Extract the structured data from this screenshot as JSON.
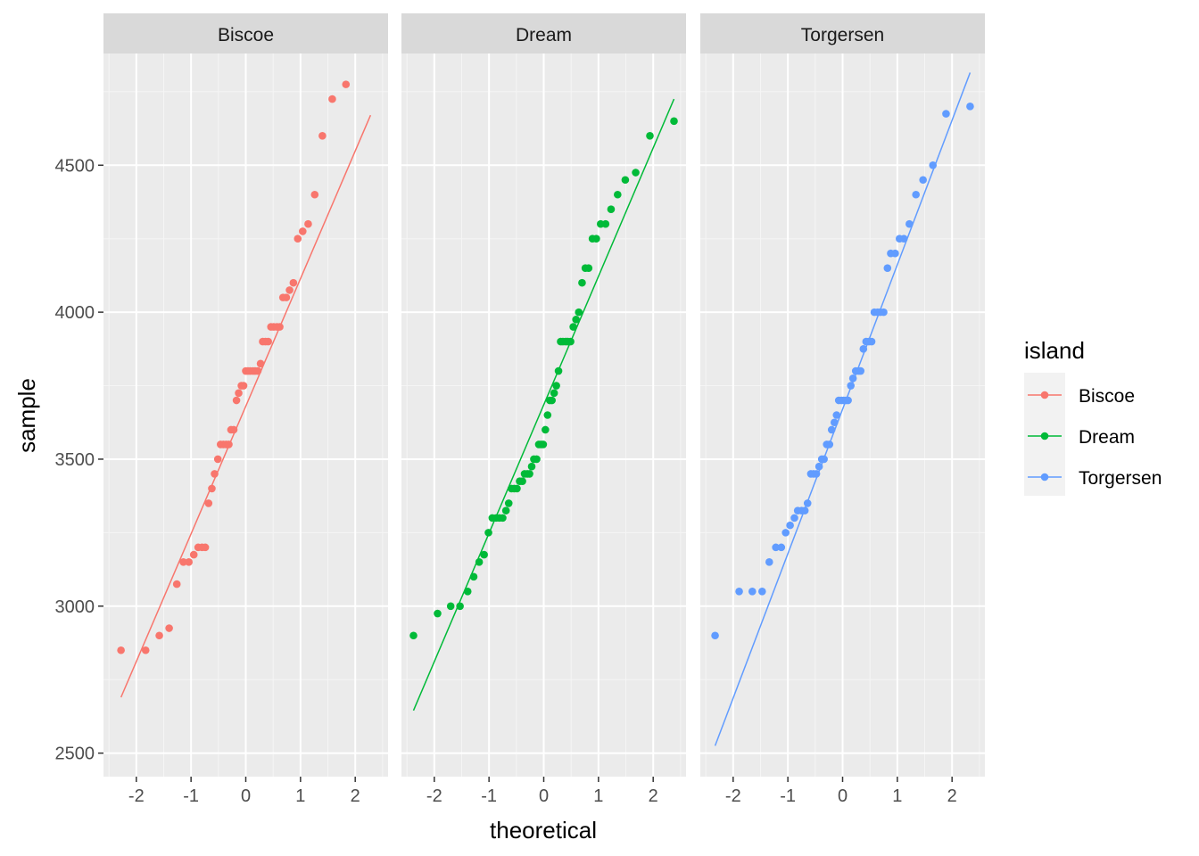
{
  "chart_data": {
    "type": "scatter",
    "subtype": "qq-plot-faceted",
    "facet_by": "island",
    "xlabel": "theoretical",
    "ylabel": "sample",
    "xlim": [
      -2.6,
      2.6
    ],
    "ylim": [
      2420,
      4880
    ],
    "x_ticks": [
      -2,
      -1,
      0,
      1,
      2
    ],
    "y_ticks": [
      2500,
      3000,
      3500,
      4000,
      4500
    ],
    "grid": true,
    "legend": {
      "title": "island",
      "position": "right",
      "entries": [
        "Biscoe",
        "Dream",
        "Torgersen"
      ]
    },
    "panels": [
      {
        "name": "Biscoe",
        "color": "#F8766D",
        "line": {
          "x": [
            -2.28,
            2.28
          ],
          "y": [
            2690,
            4670
          ]
        },
        "points": [
          [
            -2.28,
            2850
          ],
          [
            -1.83,
            2850
          ],
          [
            -1.58,
            2900
          ],
          [
            -1.4,
            2925
          ],
          [
            -1.26,
            3075
          ],
          [
            -1.14,
            3150
          ],
          [
            -1.04,
            3150
          ],
          [
            -0.95,
            3175
          ],
          [
            -0.87,
            3200
          ],
          [
            -0.8,
            3200
          ],
          [
            -0.74,
            3200
          ],
          [
            -0.68,
            3350
          ],
          [
            -0.62,
            3400
          ],
          [
            -0.57,
            3450
          ],
          [
            -0.51,
            3500
          ],
          [
            -0.46,
            3550
          ],
          [
            -0.41,
            3550
          ],
          [
            -0.36,
            3550
          ],
          [
            -0.31,
            3550
          ],
          [
            -0.27,
            3600
          ],
          [
            -0.22,
            3600
          ],
          [
            -0.17,
            3700
          ],
          [
            -0.13,
            3725
          ],
          [
            -0.08,
            3750
          ],
          [
            -0.04,
            3750
          ],
          [
            0.0,
            3800
          ],
          [
            0.04,
            3800
          ],
          [
            0.08,
            3800
          ],
          [
            0.13,
            3800
          ],
          [
            0.17,
            3800
          ],
          [
            0.22,
            3800
          ],
          [
            0.27,
            3825
          ],
          [
            0.31,
            3900
          ],
          [
            0.36,
            3900
          ],
          [
            0.41,
            3900
          ],
          [
            0.46,
            3950
          ],
          [
            0.51,
            3950
          ],
          [
            0.57,
            3950
          ],
          [
            0.62,
            3950
          ],
          [
            0.68,
            4050
          ],
          [
            0.74,
            4050
          ],
          [
            0.8,
            4075
          ],
          [
            0.87,
            4100
          ],
          [
            0.95,
            4250
          ],
          [
            1.04,
            4275
          ],
          [
            1.14,
            4300
          ],
          [
            1.26,
            4400
          ],
          [
            1.4,
            4600
          ],
          [
            1.58,
            4725
          ],
          [
            1.83,
            4775
          ]
        ]
      },
      {
        "name": "Dream",
        "color": "#00BA38",
        "line": {
          "x": [
            -2.38,
            2.38
          ],
          "y": [
            2645,
            4725
          ]
        },
        "points": [
          [
            -2.38,
            2900
          ],
          [
            -1.94,
            2975
          ],
          [
            -1.7,
            3000
          ],
          [
            -1.53,
            3000
          ],
          [
            -1.39,
            3050
          ],
          [
            -1.28,
            3100
          ],
          [
            -1.18,
            3150
          ],
          [
            -1.09,
            3175
          ],
          [
            -1.01,
            3250
          ],
          [
            -0.94,
            3300
          ],
          [
            -0.87,
            3300
          ],
          [
            -0.81,
            3300
          ],
          [
            -0.75,
            3300
          ],
          [
            -0.69,
            3325
          ],
          [
            -0.64,
            3350
          ],
          [
            -0.59,
            3400
          ],
          [
            -0.54,
            3400
          ],
          [
            -0.49,
            3400
          ],
          [
            -0.44,
            3425
          ],
          [
            -0.39,
            3425
          ],
          [
            -0.35,
            3450
          ],
          [
            -0.3,
            3450
          ],
          [
            -0.26,
            3450
          ],
          [
            -0.22,
            3475
          ],
          [
            -0.18,
            3500
          ],
          [
            -0.13,
            3500
          ],
          [
            -0.09,
            3550
          ],
          [
            -0.05,
            3550
          ],
          [
            -0.01,
            3550
          ],
          [
            0.03,
            3600
          ],
          [
            0.07,
            3650
          ],
          [
            0.11,
            3700
          ],
          [
            0.15,
            3700
          ],
          [
            0.19,
            3725
          ],
          [
            0.23,
            3750
          ],
          [
            0.27,
            3800
          ],
          [
            0.31,
            3900
          ],
          [
            0.35,
            3900
          ],
          [
            0.4,
            3900
          ],
          [
            0.44,
            3900
          ],
          [
            0.49,
            3900
          ],
          [
            0.54,
            3950
          ],
          [
            0.59,
            3975
          ],
          [
            0.64,
            4000
          ],
          [
            0.7,
            4100
          ],
          [
            0.76,
            4150
          ],
          [
            0.82,
            4150
          ],
          [
            0.89,
            4250
          ],
          [
            0.96,
            4250
          ],
          [
            1.04,
            4300
          ],
          [
            1.13,
            4300
          ],
          [
            1.23,
            4350
          ],
          [
            1.35,
            4400
          ],
          [
            1.49,
            4450
          ],
          [
            1.68,
            4475
          ],
          [
            1.94,
            4600
          ],
          [
            2.38,
            4650
          ]
        ]
      },
      {
        "name": "Torgersen",
        "color": "#619CFF",
        "line": {
          "x": [
            -2.33,
            2.33
          ],
          "y": [
            2525,
            4815
          ]
        },
        "points": [
          [
            -2.33,
            2900
          ],
          [
            -1.89,
            3050
          ],
          [
            -1.65,
            3050
          ],
          [
            -1.47,
            3050
          ],
          [
            -1.34,
            3150
          ],
          [
            -1.22,
            3200
          ],
          [
            -1.12,
            3200
          ],
          [
            -1.04,
            3250
          ],
          [
            -0.96,
            3275
          ],
          [
            -0.88,
            3300
          ],
          [
            -0.82,
            3325
          ],
          [
            -0.75,
            3325
          ],
          [
            -0.69,
            3325
          ],
          [
            -0.64,
            3350
          ],
          [
            -0.58,
            3450
          ],
          [
            -0.53,
            3450
          ],
          [
            -0.48,
            3450
          ],
          [
            -0.43,
            3475
          ],
          [
            -0.38,
            3500
          ],
          [
            -0.34,
            3500
          ],
          [
            -0.29,
            3550
          ],
          [
            -0.24,
            3550
          ],
          [
            -0.2,
            3600
          ],
          [
            -0.15,
            3625
          ],
          [
            -0.11,
            3650
          ],
          [
            -0.07,
            3700
          ],
          [
            -0.02,
            3700
          ],
          [
            0.02,
            3700
          ],
          [
            0.06,
            3700
          ],
          [
            0.1,
            3700
          ],
          [
            0.15,
            3750
          ],
          [
            0.19,
            3775
          ],
          [
            0.24,
            3800
          ],
          [
            0.29,
            3800
          ],
          [
            0.33,
            3800
          ],
          [
            0.38,
            3875
          ],
          [
            0.43,
            3900
          ],
          [
            0.48,
            3900
          ],
          [
            0.53,
            3900
          ],
          [
            0.58,
            4000
          ],
          [
            0.64,
            4000
          ],
          [
            0.69,
            4000
          ],
          [
            0.75,
            4000
          ],
          [
            0.82,
            4150
          ],
          [
            0.88,
            4200
          ],
          [
            0.96,
            4200
          ],
          [
            1.04,
            4250
          ],
          [
            1.12,
            4250
          ],
          [
            1.22,
            4300
          ],
          [
            1.34,
            4400
          ],
          [
            1.47,
            4450
          ],
          [
            1.65,
            4500
          ],
          [
            1.89,
            4675
          ],
          [
            2.33,
            4700
          ]
        ]
      }
    ]
  }
}
